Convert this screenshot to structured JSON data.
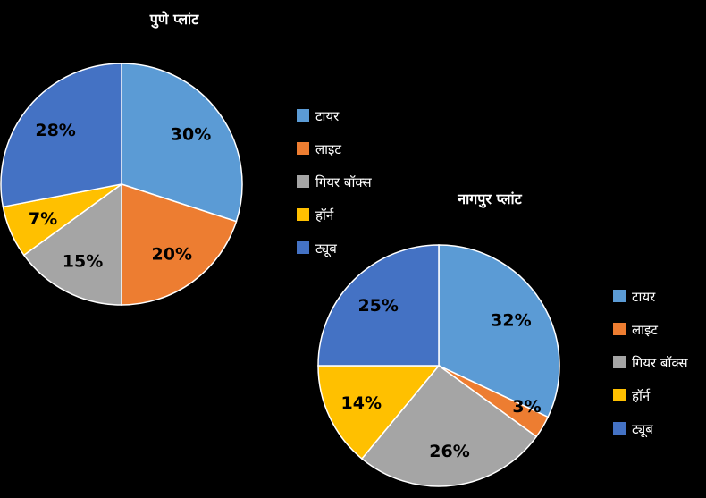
{
  "chart_data": [
    {
      "type": "pie",
      "title": "पुणे प्लांट",
      "categories": [
        "टायर",
        "लाइट",
        "गियर बॉक्स",
        "हॉर्न",
        "ट्यूब"
      ],
      "values": [
        30,
        20,
        15,
        7,
        28
      ],
      "labels": [
        "30%",
        "20%",
        "15%",
        "7%",
        "28%"
      ],
      "colors": [
        "#5B9BD5",
        "#ED7D31",
        "#A5A5A5",
        "#FFC000",
        "#4472C4"
      ],
      "legend": "right"
    },
    {
      "type": "pie",
      "title": "नागपुर प्लांट",
      "categories": [
        "टायर",
        "लाइट",
        "गियर बॉक्स",
        "हॉर्न",
        "ट्यूब"
      ],
      "values": [
        32,
        3,
        26,
        14,
        25
      ],
      "labels": [
        "32%",
        "3%",
        "26%",
        "14%",
        "25%"
      ],
      "colors": [
        "#5B9BD5",
        "#ED7D31",
        "#A5A5A5",
        "#FFC000",
        "#4472C4"
      ],
      "legend": "right"
    }
  ]
}
